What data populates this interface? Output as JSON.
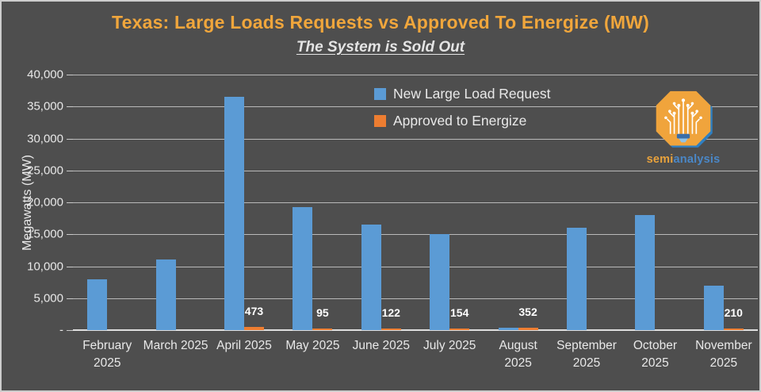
{
  "chart": {
    "title": "Texas: Large Loads Requests vs Approved To Energize (MW)",
    "subtitle": "The System is Sold Out",
    "y_axis_title": "Megawatts (MW)"
  },
  "legend": {
    "series1_label": "New Large Load Request",
    "series2_label": "Approved to Energize"
  },
  "logo": {
    "word1": "semi",
    "word2": "analysis"
  },
  "colors": {
    "background": "#4e4e4e",
    "title_orange": "#f0a63c",
    "series_blue": "#5b9bd5",
    "series_orange": "#ed7d31",
    "logo_word1": "#e8a23c",
    "logo_word2": "#4a87c7"
  },
  "chart_data": {
    "type": "bar",
    "title": "Texas: Large Loads Requests vs Approved To Energize (MW)",
    "subtitle": "The System is Sold Out",
    "xlabel": "",
    "ylabel": "Megawatts (MW)",
    "ylim": [
      0,
      40000
    ],
    "ytick_step": 5000,
    "ytick_labels": [
      "-",
      "5,000",
      "10,000",
      "15,000",
      "20,000",
      "25,000",
      "30,000",
      "35,000",
      "40,000"
    ],
    "grid": true,
    "legend_position": "top-center-inside",
    "categories": [
      "February 2025",
      "March 2025",
      "April 2025",
      "May 2025",
      "June 2025",
      "July 2025",
      "August 2025",
      "September 2025",
      "October 2025",
      "November 2025"
    ],
    "series": [
      {
        "name": "New Large Load Request",
        "color": "#5b9bd5",
        "values": [
          8000,
          11000,
          36500,
          19200,
          16500,
          15000,
          400,
          16000,
          18000,
          6900
        ]
      },
      {
        "name": "Approved to Energize",
        "color": "#ed7d31",
        "values": [
          0,
          0,
          473,
          95,
          122,
          154,
          352,
          0,
          0,
          210
        ],
        "data_labels": [
          "",
          "",
          "473",
          "95",
          "122",
          "154",
          "352",
          "",
          "",
          "210"
        ]
      }
    ]
  }
}
